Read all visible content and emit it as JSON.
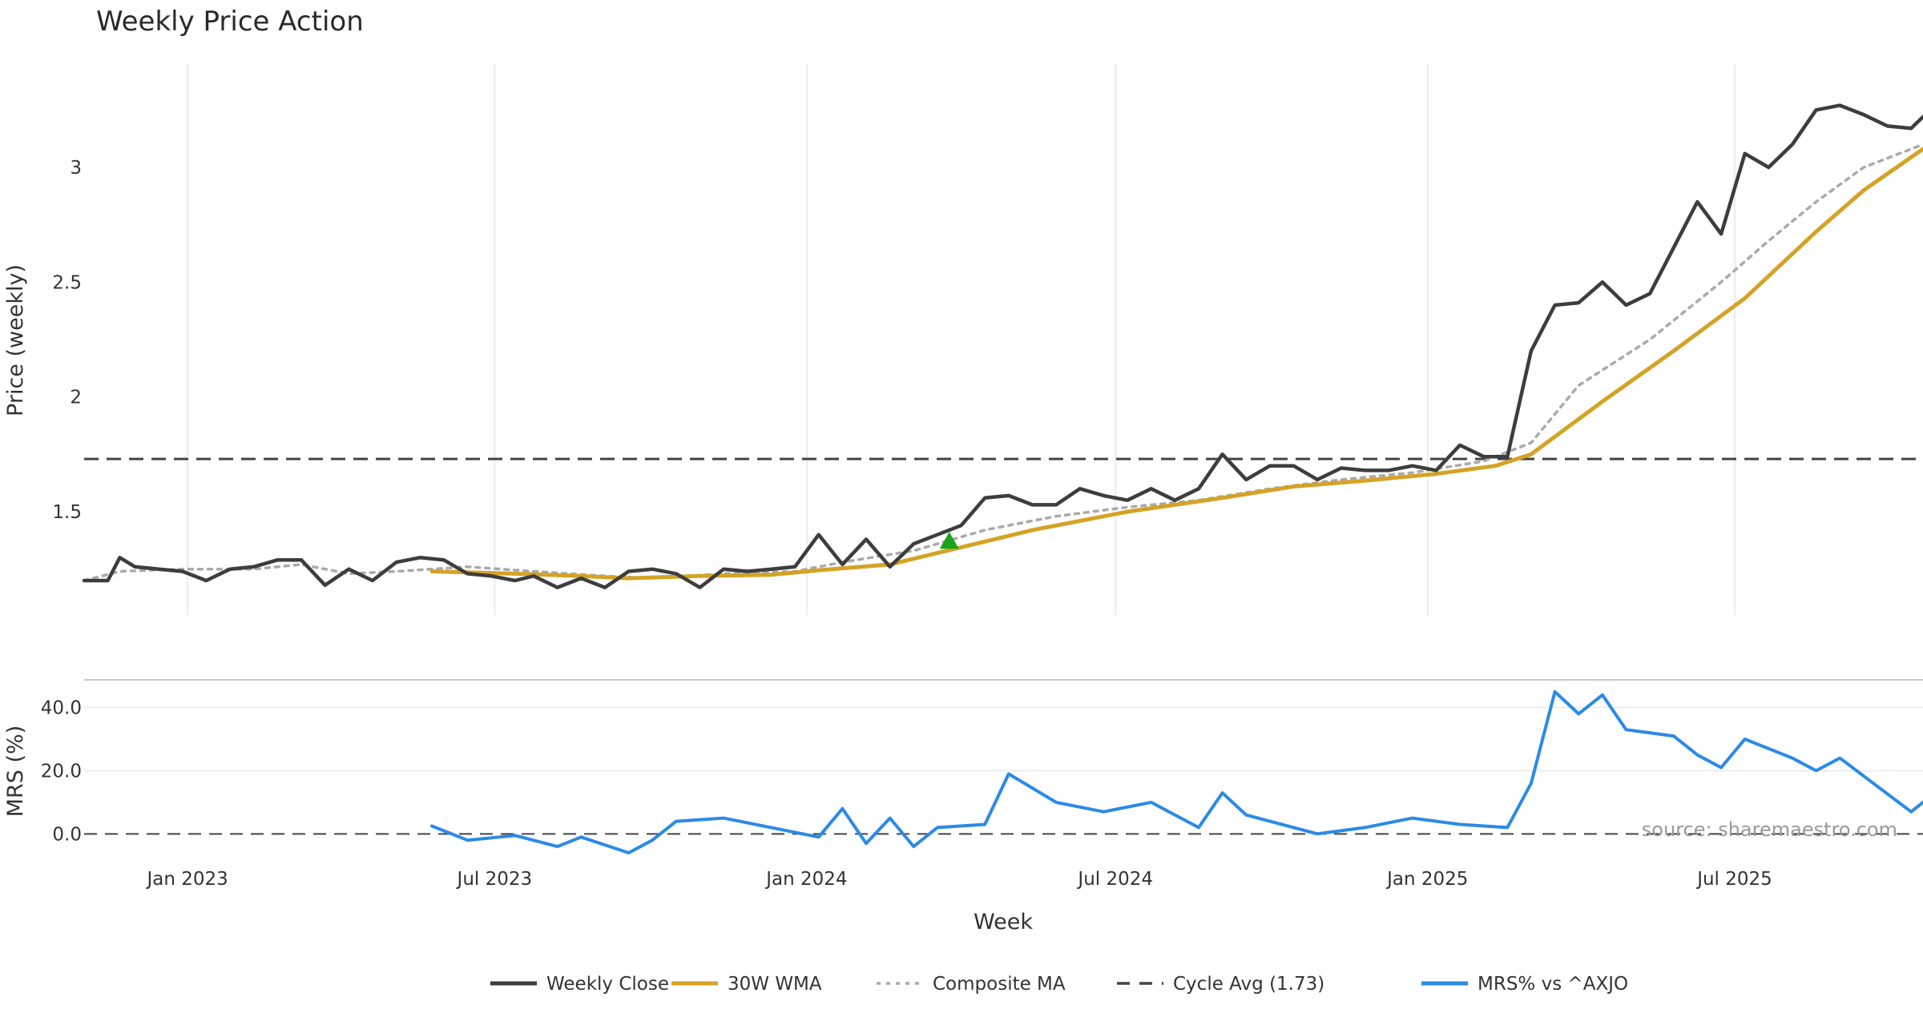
{
  "chart_data": {
    "type": "line",
    "title": "Weekly Price Action",
    "xlabel": "Week",
    "x_ticks": [
      "Jan 2023",
      "Jul 2023",
      "Jan 2024",
      "Jul 2024",
      "Jan 2025",
      "Jul 2025"
    ],
    "x_range": [
      "2022-11-01",
      "2025-10-20"
    ],
    "price_panel": {
      "ylabel": "Price (weekly)",
      "ylim": [
        1.05,
        3.45
      ],
      "y_ticks": [
        "1.5",
        "2",
        "2.5",
        "3"
      ],
      "y_tick_values": [
        1.5,
        2,
        2.5,
        3
      ],
      "cycle_avg": 1.73,
      "signal_marker": {
        "date": "2024-03-25",
        "value": 1.37,
        "shape": "up-triangle",
        "color": "#1aa31a"
      }
    },
    "mrs_panel": {
      "ylabel": "MRS (%)",
      "ylim": [
        -6,
        48
      ],
      "y_ticks": [
        "0.0",
        "20.0",
        "40.0"
      ],
      "y_tick_values": [
        0,
        20,
        40
      ],
      "zero_line": 0
    },
    "series": [
      {
        "name": "Weekly Close",
        "panel": "price",
        "color": "#3d3d3d",
        "style": "solid",
        "points": [
          [
            "2022-11-01",
            1.2
          ],
          [
            "2022-11-15",
            1.2
          ],
          [
            "2022-11-22",
            1.3
          ],
          [
            "2022-12-01",
            1.26
          ],
          [
            "2022-12-15",
            1.25
          ],
          [
            "2022-12-29",
            1.24
          ],
          [
            "2023-01-12",
            1.2
          ],
          [
            "2023-01-26",
            1.25
          ],
          [
            "2023-02-09",
            1.26
          ],
          [
            "2023-02-23",
            1.29
          ],
          [
            "2023-03-09",
            1.29
          ],
          [
            "2023-03-23",
            1.18
          ],
          [
            "2023-04-06",
            1.25
          ],
          [
            "2023-04-20",
            1.2
          ],
          [
            "2023-05-04",
            1.28
          ],
          [
            "2023-05-18",
            1.3
          ],
          [
            "2023-06-01",
            1.29
          ],
          [
            "2023-06-15",
            1.23
          ],
          [
            "2023-06-29",
            1.22
          ],
          [
            "2023-07-13",
            1.2
          ],
          [
            "2023-07-24",
            1.22
          ],
          [
            "2023-08-07",
            1.17
          ],
          [
            "2023-08-21",
            1.21
          ],
          [
            "2023-09-04",
            1.17
          ],
          [
            "2023-09-18",
            1.24
          ],
          [
            "2023-10-02",
            1.25
          ],
          [
            "2023-10-16",
            1.23
          ],
          [
            "2023-10-30",
            1.17
          ],
          [
            "2023-11-13",
            1.25
          ],
          [
            "2023-11-27",
            1.24
          ],
          [
            "2023-12-11",
            1.25
          ],
          [
            "2023-12-25",
            1.26
          ],
          [
            "2024-01-08",
            1.4
          ],
          [
            "2024-01-22",
            1.27
          ],
          [
            "2024-02-05",
            1.38
          ],
          [
            "2024-02-19",
            1.26
          ],
          [
            "2024-03-04",
            1.36
          ],
          [
            "2024-03-18",
            1.4
          ],
          [
            "2024-04-01",
            1.44
          ],
          [
            "2024-04-15",
            1.56
          ],
          [
            "2024-04-29",
            1.57
          ],
          [
            "2024-05-13",
            1.53
          ],
          [
            "2024-05-27",
            1.53
          ],
          [
            "2024-06-10",
            1.6
          ],
          [
            "2024-06-24",
            1.57
          ],
          [
            "2024-07-08",
            1.55
          ],
          [
            "2024-07-22",
            1.6
          ],
          [
            "2024-08-05",
            1.55
          ],
          [
            "2024-08-19",
            1.6
          ],
          [
            "2024-09-02",
            1.75
          ],
          [
            "2024-09-16",
            1.64
          ],
          [
            "2024-09-30",
            1.7
          ],
          [
            "2024-10-14",
            1.7
          ],
          [
            "2024-10-28",
            1.64
          ],
          [
            "2024-11-11",
            1.69
          ],
          [
            "2024-11-25",
            1.68
          ],
          [
            "2024-12-09",
            1.68
          ],
          [
            "2024-12-23",
            1.7
          ],
          [
            "2025-01-06",
            1.68
          ],
          [
            "2025-01-20",
            1.79
          ],
          [
            "2025-02-03",
            1.74
          ],
          [
            "2025-02-17",
            1.74
          ],
          [
            "2025-03-03",
            2.2
          ],
          [
            "2025-03-17",
            2.4
          ],
          [
            "2025-03-31",
            2.41
          ],
          [
            "2025-04-14",
            2.5
          ],
          [
            "2025-04-28",
            2.4
          ],
          [
            "2025-05-12",
            2.45
          ],
          [
            "2025-05-26",
            2.65
          ],
          [
            "2025-06-09",
            2.85
          ],
          [
            "2025-06-23",
            2.71
          ],
          [
            "2025-07-07",
            3.06
          ],
          [
            "2025-07-21",
            3.0
          ],
          [
            "2025-08-04",
            3.1
          ],
          [
            "2025-08-18",
            3.25
          ],
          [
            "2025-09-01",
            3.27
          ],
          [
            "2025-09-15",
            3.23
          ],
          [
            "2025-09-29",
            3.18
          ],
          [
            "2025-10-13",
            3.17
          ],
          [
            "2025-10-20",
            3.22
          ]
        ]
      },
      {
        "name": "30W WMA",
        "panel": "price",
        "color": "#d4a326",
        "style": "solid",
        "points": [
          [
            "2023-05-25",
            1.24
          ],
          [
            "2023-07-13",
            1.23
          ],
          [
            "2023-08-21",
            1.22
          ],
          [
            "2023-09-18",
            1.21
          ],
          [
            "2023-10-30",
            1.22
          ],
          [
            "2023-12-11",
            1.225
          ],
          [
            "2024-01-08",
            1.245
          ],
          [
            "2024-02-19",
            1.27
          ],
          [
            "2024-03-18",
            1.32
          ],
          [
            "2024-04-15",
            1.37
          ],
          [
            "2024-05-13",
            1.42
          ],
          [
            "2024-06-10",
            1.46
          ],
          [
            "2024-07-08",
            1.5
          ],
          [
            "2024-08-05",
            1.53
          ],
          [
            "2024-09-02",
            1.56
          ],
          [
            "2024-10-14",
            1.61
          ],
          [
            "2024-11-25",
            1.635
          ],
          [
            "2025-01-06",
            1.665
          ],
          [
            "2025-02-10",
            1.7
          ],
          [
            "2025-03-03",
            1.75
          ],
          [
            "2025-04-14",
            1.98
          ],
          [
            "2025-05-26",
            2.2
          ],
          [
            "2025-07-07",
            2.43
          ],
          [
            "2025-08-18",
            2.72
          ],
          [
            "2025-09-15",
            2.9
          ],
          [
            "2025-10-20",
            3.08
          ]
        ]
      },
      {
        "name": "Composite MA",
        "panel": "price",
        "color": "#aaaaaa",
        "style": "dotted",
        "points": [
          [
            "2022-11-01",
            1.2
          ],
          [
            "2022-11-22",
            1.24
          ],
          [
            "2022-12-29",
            1.25
          ],
          [
            "2023-02-09",
            1.25
          ],
          [
            "2023-03-09",
            1.27
          ],
          [
            "2023-04-06",
            1.23
          ],
          [
            "2023-05-04",
            1.24
          ],
          [
            "2023-06-15",
            1.26
          ],
          [
            "2023-07-24",
            1.24
          ],
          [
            "2023-09-04",
            1.22
          ],
          [
            "2023-10-02",
            1.21
          ],
          [
            "2023-11-13",
            1.23
          ],
          [
            "2023-12-25",
            1.24
          ],
          [
            "2024-01-22",
            1.28
          ],
          [
            "2024-03-04",
            1.33
          ],
          [
            "2024-04-15",
            1.42
          ],
          [
            "2024-05-27",
            1.48
          ],
          [
            "2024-07-08",
            1.52
          ],
          [
            "2024-08-19",
            1.55
          ],
          [
            "2024-09-30",
            1.6
          ],
          [
            "2024-11-11",
            1.64
          ],
          [
            "2024-12-23",
            1.67
          ],
          [
            "2025-02-03",
            1.72
          ],
          [
            "2025-03-03",
            1.8
          ],
          [
            "2025-03-31",
            2.05
          ],
          [
            "2025-05-12",
            2.25
          ],
          [
            "2025-06-23",
            2.5
          ],
          [
            "2025-07-21",
            2.68
          ],
          [
            "2025-08-18",
            2.85
          ],
          [
            "2025-09-15",
            3.0
          ],
          [
            "2025-10-20",
            3.1
          ]
        ]
      },
      {
        "name": "MRS% vs ^AXJO",
        "panel": "mrs",
        "color": "#2b8ae6",
        "style": "solid",
        "points": [
          [
            "2023-05-25",
            2.5
          ],
          [
            "2023-06-15",
            -2
          ],
          [
            "2023-07-13",
            -0.5
          ],
          [
            "2023-08-07",
            -4
          ],
          [
            "2023-08-21",
            -1
          ],
          [
            "2023-09-18",
            -6
          ],
          [
            "2023-10-02",
            -2
          ],
          [
            "2023-10-16",
            4
          ],
          [
            "2023-11-13",
            5
          ],
          [
            "2023-12-11",
            2
          ],
          [
            "2024-01-08",
            -1
          ],
          [
            "2024-01-22",
            8
          ],
          [
            "2024-02-05",
            -3
          ],
          [
            "2024-02-19",
            5
          ],
          [
            "2024-03-04",
            -4
          ],
          [
            "2024-03-18",
            2
          ],
          [
            "2024-04-15",
            3
          ],
          [
            "2024-04-29",
            19
          ],
          [
            "2024-05-27",
            10
          ],
          [
            "2024-06-24",
            7
          ],
          [
            "2024-07-22",
            10
          ],
          [
            "2024-08-19",
            2
          ],
          [
            "2024-09-02",
            13
          ],
          [
            "2024-09-16",
            6
          ],
          [
            "2024-10-28",
            0
          ],
          [
            "2024-11-25",
            2
          ],
          [
            "2024-12-23",
            5
          ],
          [
            "2025-01-20",
            3
          ],
          [
            "2025-02-17",
            2
          ],
          [
            "2025-03-03",
            16
          ],
          [
            "2025-03-17",
            45
          ],
          [
            "2025-03-31",
            38
          ],
          [
            "2025-04-14",
            44
          ],
          [
            "2025-04-28",
            33
          ],
          [
            "2025-05-26",
            31
          ],
          [
            "2025-06-09",
            25
          ],
          [
            "2025-06-23",
            21
          ],
          [
            "2025-07-07",
            30
          ],
          [
            "2025-08-04",
            24
          ],
          [
            "2025-08-18",
            20
          ],
          [
            "2025-09-01",
            24
          ],
          [
            "2025-10-13",
            7
          ],
          [
            "2025-10-20",
            10
          ]
        ]
      }
    ],
    "legend": [
      {
        "label": "Weekly Close",
        "color": "#3d3d3d",
        "style": "solid"
      },
      {
        "label": "30W WMA",
        "color": "#d4a326",
        "style": "solid"
      },
      {
        "label": "Composite MA",
        "color": "#aaaaaa",
        "style": "dotted"
      },
      {
        "label": "Cycle Avg (1.73)",
        "color": "#444444",
        "style": "dashed"
      },
      {
        "label": "MRS% vs ^AXJO",
        "color": "#2b8ae6",
        "style": "solid"
      }
    ],
    "legend_position": "bottom-center",
    "source": "source: sharemaestro.com",
    "grid": true
  }
}
